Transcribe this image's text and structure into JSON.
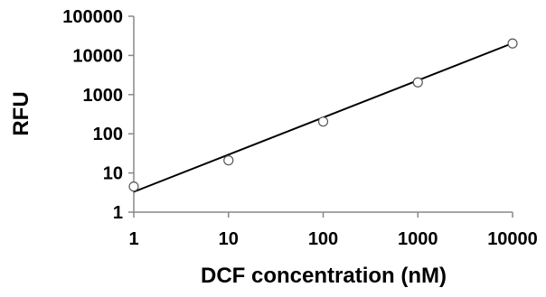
{
  "chart_data": {
    "type": "scatter",
    "title": "",
    "xlabel": "DCF concentration (nM)",
    "ylabel": "RFU",
    "x_scale": "log",
    "y_scale": "log",
    "xlim": [
      1,
      10000
    ],
    "ylim": [
      1,
      100000
    ],
    "x_ticks": [
      "1",
      "10",
      "100",
      "1000",
      "10000"
    ],
    "y_ticks": [
      "1",
      "10",
      "100",
      "1000",
      "10000",
      "100000"
    ],
    "grid": false,
    "legend": "none",
    "series": [
      {
        "points": [
          {
            "x": 1,
            "y": 4.5
          },
          {
            "x": 10,
            "y": 21
          },
          {
            "x": 100,
            "y": 205
          },
          {
            "x": 1000,
            "y": 2050
          },
          {
            "x": 10000,
            "y": 20200
          }
        ],
        "marker": "open-circle",
        "color": "#000000"
      }
    ],
    "trendline": {
      "type": "power",
      "from": {
        "x": 1,
        "y": 3.3
      },
      "to": {
        "x": 10000,
        "y": 20500
      },
      "color": "#000000"
    }
  }
}
